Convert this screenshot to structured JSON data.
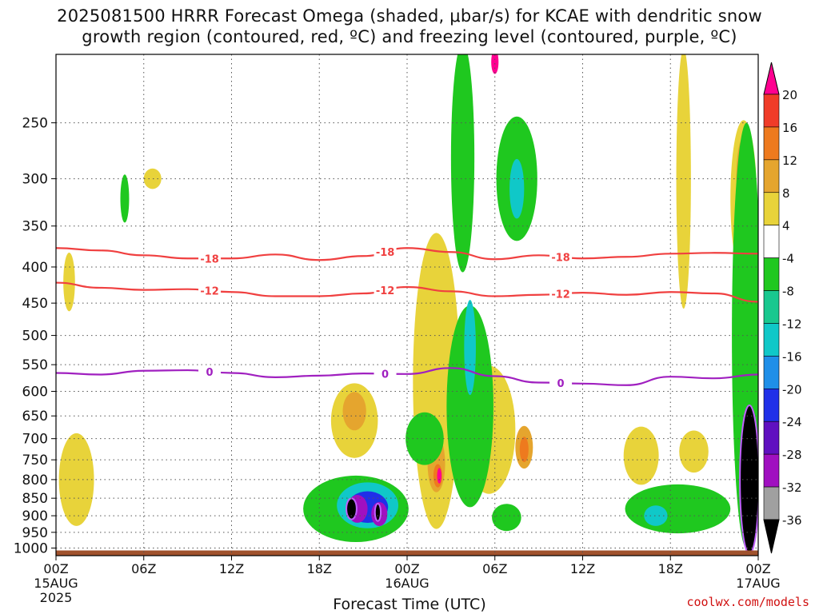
{
  "title_line1": "2025081500 HRRR Forecast Omega (shaded, μbar/s) for KCAE with dendritic snow",
  "title_line2": "growth region (contoured, red, ºC) and freezing level (contoured, purple, ºC)",
  "credit": "coolwx.com/models",
  "chart_data": {
    "type": "heatmap",
    "title": "2025081500 HRRR Forecast Omega (shaded, μbar/s) for KCAE with dendritic snow growth region (contoured, red, ºC) and freezing level (contoured, purple, ºC)",
    "xlabel": "Forecast Time (UTC)",
    "ylabel": "",
    "x_range_hours": [
      0,
      48
    ],
    "x_ticks": [
      {
        "hour": 0,
        "label": "00Z",
        "sub1": "15AUG",
        "sub2": "2025"
      },
      {
        "hour": 6,
        "label": "06Z"
      },
      {
        "hour": 12,
        "label": "12Z"
      },
      {
        "hour": 18,
        "label": "18Z"
      },
      {
        "hour": 24,
        "label": "00Z",
        "sub1": "16AUG"
      },
      {
        "hour": 30,
        "label": "06Z"
      },
      {
        "hour": 36,
        "label": "12Z"
      },
      {
        "hour": 42,
        "label": "18Z"
      },
      {
        "hour": 48,
        "label": "00Z",
        "sub1": "17AUG"
      }
    ],
    "y_ticks": [
      250,
      300,
      350,
      400,
      450,
      500,
      550,
      600,
      650,
      700,
      750,
      800,
      850,
      900,
      950,
      1000
    ],
    "y_scale": "log-pressure",
    "y_range_hpa": [
      200,
      1025
    ],
    "grid": true,
    "colorbar": {
      "labels": [
        "20",
        "16",
        "12",
        "8",
        "4",
        "-4",
        "-8",
        "-12",
        "-16",
        "-20",
        "-24",
        "-28",
        "-32",
        "-36"
      ],
      "colors": [
        "#ff0090",
        "#f03c28",
        "#ee7a1e",
        "#e5a52e",
        "#e8d33a",
        "#ffffff",
        "#1fc81f",
        "#18c88f",
        "#10c8c8",
        "#1f8fe8",
        "#2030e8",
        "#6010c0",
        "#a010c0",
        "#a0a0a0",
        "#000000"
      ]
    },
    "series": [
      {
        "name": "-18",
        "kind": "contour",
        "color": "#f04040",
        "x": [
          0,
          3,
          6,
          9,
          12,
          15,
          18,
          21,
          24,
          27,
          30,
          33,
          36,
          39,
          42,
          45,
          48
        ],
        "y": [
          376,
          379,
          385,
          389,
          389,
          384,
          391,
          386,
          376,
          381,
          390,
          385,
          389,
          387,
          383,
          382,
          383
        ]
      },
      {
        "name": "-12",
        "kind": "contour",
        "color": "#f04040",
        "x": [
          0,
          3,
          6,
          9,
          12,
          15,
          18,
          21,
          24,
          27,
          30,
          33,
          36,
          39,
          42,
          45,
          48
        ],
        "y": [
          421,
          428,
          431,
          430,
          434,
          440,
          440,
          436,
          427,
          433,
          440,
          438,
          435,
          438,
          434,
          436,
          448
        ]
      },
      {
        "name": "0",
        "kind": "contour",
        "color": "#a020c0",
        "x": [
          0,
          3,
          6,
          9,
          12,
          15,
          18,
          21,
          24,
          27,
          30,
          33,
          36,
          39,
          42,
          45,
          48
        ],
        "y": [
          565,
          568,
          561,
          560,
          565,
          573,
          570,
          566,
          567,
          556,
          571,
          583,
          585,
          588,
          572,
          575,
          568
        ]
      }
    ],
    "regions": [
      {
        "level": "4",
        "hour": 6.6,
        "p": 300,
        "r_hours": 0.6,
        "r_p": 10
      },
      {
        "level": "4",
        "hour": 0.9,
        "p": 420,
        "r_hours": 0.4,
        "r_p": 40
      },
      {
        "level": "4",
        "hour": 1.4,
        "p": 800,
        "r_hours": 1.2,
        "r_p": 120
      },
      {
        "level": "4",
        "hour": 20.4,
        "p": 660,
        "r_hours": 1.6,
        "r_p": 80
      },
      {
        "level": "4",
        "hour": 26.0,
        "p": 580,
        "r_hours": 1.6,
        "r_p": 260
      },
      {
        "level": "4",
        "hour": 29.6,
        "p": 680,
        "r_hours": 1.8,
        "r_p": 140
      },
      {
        "level": "4",
        "hour": 42.9,
        "p": 300,
        "r_hours": 0.5,
        "r_p": 120
      },
      {
        "level": "4",
        "hour": 40.0,
        "p": 740,
        "r_hours": 1.2,
        "r_p": 70
      },
      {
        "level": "4",
        "hour": 43.6,
        "p": 730,
        "r_hours": 1.0,
        "r_p": 50
      },
      {
        "level": "4",
        "hour": 47.0,
        "p": 320,
        "r_hours": 0.9,
        "r_p": 80
      },
      {
        "level": "8",
        "hour": 20.4,
        "p": 640,
        "r_hours": 0.8,
        "r_p": 40
      },
      {
        "level": "8",
        "hour": 26.0,
        "p": 760,
        "r_hours": 0.6,
        "r_p": 70
      },
      {
        "level": "8",
        "hour": 32.0,
        "p": 720,
        "r_hours": 0.6,
        "r_p": 50
      },
      {
        "level": "8",
        "hour": 47.0,
        "p": 300,
        "r_hours": 0.5,
        "r_p": 40
      },
      {
        "level": "12",
        "hour": 26.1,
        "p": 790,
        "r_hours": 0.3,
        "r_p": 30
      },
      {
        "level": "12",
        "hour": 32.0,
        "p": 725,
        "r_hours": 0.3,
        "r_p": 30
      },
      {
        "level": "20",
        "hour": 26.2,
        "p": 790,
        "r_hours": 0.15,
        "r_p": 20
      },
      {
        "level": "20",
        "hour": 47.0,
        "p": 300,
        "r_hours": 0.35,
        "r_p": 25
      },
      {
        "level": "20",
        "hour": 30.0,
        "p": 205,
        "r_hours": 0.25,
        "r_p": 8
      },
      {
        "level": "-4",
        "hour": 4.7,
        "p": 320,
        "r_hours": 0.3,
        "r_p": 25
      },
      {
        "level": "-4",
        "hour": 27.8,
        "p": 280,
        "r_hours": 0.8,
        "r_p": 100
      },
      {
        "level": "-4",
        "hour": 31.5,
        "p": 300,
        "r_hours": 1.4,
        "r_p": 60
      },
      {
        "level": "-4",
        "hour": 28.3,
        "p": 630,
        "r_hours": 1.6,
        "r_p": 200
      },
      {
        "level": "-4",
        "hour": 25.2,
        "p": 700,
        "r_hours": 1.3,
        "r_p": 60
      },
      {
        "level": "-4",
        "hour": 20.5,
        "p": 880,
        "r_hours": 3.6,
        "r_p": 95
      },
      {
        "level": "-4",
        "hour": 42.5,
        "p": 880,
        "r_hours": 3.6,
        "r_p": 70
      },
      {
        "level": "-4",
        "hour": 47.2,
        "p": 500,
        "r_hours": 1.0,
        "r_p": 300
      },
      {
        "level": "-4",
        "hour": 30.8,
        "p": 905,
        "r_hours": 1.0,
        "r_p": 40
      },
      {
        "level": "-12",
        "hour": 21.3,
        "p": 870,
        "r_hours": 2.1,
        "r_p": 65
      },
      {
        "level": "-12",
        "hour": 31.5,
        "p": 310,
        "r_hours": 0.5,
        "r_p": 30
      },
      {
        "level": "-12",
        "hour": 28.3,
        "p": 520,
        "r_hours": 0.4,
        "r_p": 80
      },
      {
        "level": "-12",
        "hour": 41.0,
        "p": 900,
        "r_hours": 0.8,
        "r_p": 30
      },
      {
        "level": "-20",
        "hour": 21.3,
        "p": 875,
        "r_hours": 1.4,
        "r_p": 45
      },
      {
        "level": "-28",
        "hour": 20.6,
        "p": 880,
        "r_hours": 0.7,
        "r_p": 40
      },
      {
        "level": "-28",
        "hour": 22.1,
        "p": 895,
        "r_hours": 0.55,
        "r_p": 35
      },
      {
        "level": "-36",
        "hour": 20.2,
        "p": 880,
        "r_hours": 0.35,
        "r_p": 30
      },
      {
        "level": "-36",
        "hour": 22.0,
        "p": 890,
        "r_hours": 0.2,
        "r_p": 25
      },
      {
        "level": "-36",
        "hour": 47.4,
        "p": 800,
        "r_hours": 0.65,
        "r_p": 190
      }
    ]
  }
}
